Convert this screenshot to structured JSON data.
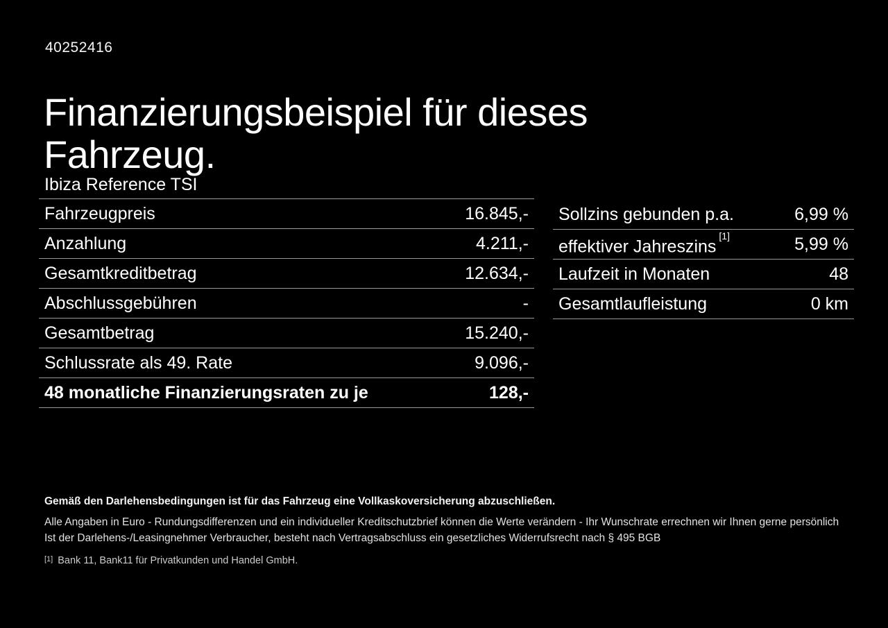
{
  "page": {
    "id_number": "40252416",
    "title": "Finanzierungsbeispiel für dieses Fahrzeug."
  },
  "colors": {
    "background": "#000000",
    "text": "#ffffff",
    "divider": "#9c9c9c"
  },
  "left_table": {
    "header": "Ibiza Reference TSI",
    "rows": [
      {
        "label": "Fahrzeugpreis",
        "value": "16.845,-"
      },
      {
        "label": "Anzahlung",
        "value": "4.211,-"
      },
      {
        "label": "Gesamtkreditbetrag",
        "value": "12.634,-"
      },
      {
        "label": "Abschlussgebühren",
        "value": "-"
      },
      {
        "label": "Gesamtbetrag",
        "value": "15.240,-"
      },
      {
        "label": "Schlussrate als 49. Rate",
        "value": "9.096,-"
      },
      {
        "label": "48 monatliche Finanzierungsraten zu je",
        "value": "128,-"
      }
    ]
  },
  "right_table": {
    "rows": [
      {
        "label": "Sollzins gebunden p.a.",
        "label_sup": "",
        "value": "6,99 %"
      },
      {
        "label": "effektiver Jahreszins",
        "label_sup": "[1]",
        "value": "5,99 %"
      },
      {
        "label": "Laufzeit in Monaten",
        "label_sup": "",
        "value": "48"
      },
      {
        "label": "Gesamtlaufleistung",
        "label_sup": "",
        "value": "0 km"
      }
    ]
  },
  "footer": {
    "disclaimer_bold": "Gemäß den Darlehensbedingungen ist für das Fahrzeug eine Vollkaskoversicherung abzuschließen.",
    "note_line1": "Alle Angaben in Euro - Rundungsdifferenzen und ein individueller Kreditschutzbrief können die Werte verändern - Ihr Wunschrate errechnen wir Ihnen gerne persönlich",
    "note_line2": "Ist der Darlehens-/Leasingnehmer Verbraucher, besteht nach Vertragsabschluss ein gesetzliches Widerrufsrecht nach § 495 BGB",
    "footnote_marker": "[1]",
    "footnote_text": "Bank 11, Bank11 für Privatkunden und Handel GmbH."
  }
}
